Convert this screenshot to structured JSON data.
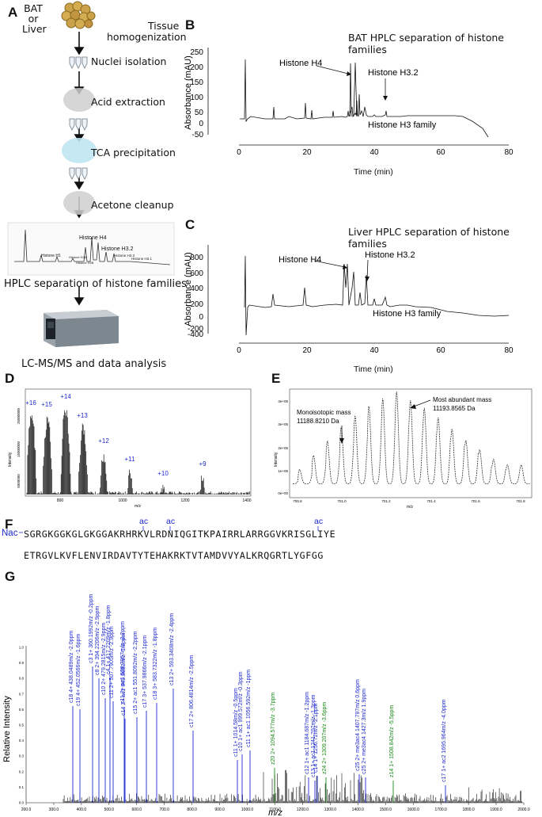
{
  "panels": {
    "A": {
      "letter": "A",
      "sample": [
        "BAT",
        "or",
        "Liver"
      ],
      "steps": [
        "Tissue",
        "homogenization",
        "Nuclei isolation",
        "Acid extraction",
        "TCA precipitation",
        "Acetone cleanup",
        "HPLC separation of histone families",
        "LC-MS/MS and data analysis"
      ],
      "thumb_labels": [
        "Histone H1",
        "Histone H2A",
        "Histone H2B",
        "Histone H4",
        "Histone H3.2",
        "Histone H3.3",
        "Histone H3.1"
      ]
    },
    "B": {
      "letter": "B",
      "title": "BAT HPLC separation of histone families",
      "ylabel": "Absorbance (mAU)",
      "xlabel": "Time (min)",
      "yticks": [
        "250",
        "200",
        "150",
        "100",
        "50",
        "0",
        "-50"
      ],
      "xticks": [
        "0",
        "20",
        "40",
        "60",
        "80"
      ],
      "annotations": [
        "Histone H4",
        "Histone H3.2",
        "Histone H3 family"
      ]
    },
    "C": {
      "letter": "C",
      "title": "Liver HPLC separation of histone families",
      "ylabel": "Absorbance (mAU)",
      "xlabel": "Time (min)",
      "yticks": [
        "800",
        "600",
        "400",
        "200",
        "0",
        "-200",
        "-400"
      ],
      "xticks": [
        "0",
        "20",
        "40",
        "60",
        "80"
      ],
      "annotations": [
        "Histone H4",
        "Histone H3.2",
        "Histone H3 family"
      ]
    },
    "D": {
      "letter": "D",
      "ylabel": "Intensity",
      "xlabel": "m/z",
      "charge_states": [
        "+16",
        "+15",
        "+14",
        "+13",
        "+12",
        "+11",
        "+10",
        "+9"
      ],
      "yticks": [
        "25000000",
        "15000000",
        "5000000"
      ],
      "xticks": [
        "800",
        "1000",
        "1200",
        "1400"
      ]
    },
    "E": {
      "letter": "E",
      "ylabel": "Intensity",
      "xlabel": "m/z",
      "mono_label": [
        "Monoisotopic mass",
        "11188.8210 Da"
      ],
      "abundant_label": [
        "Most abundant mass",
        "11193.8565 Da"
      ],
      "yticks": [
        "4e+05",
        "3e+05",
        "2e+05",
        "1e+05",
        "0e+00"
      ],
      "xticks": [
        "700.8",
        "701.0",
        "701.2",
        "701.4",
        "701.6",
        "701.8"
      ]
    },
    "F": {
      "letter": "F",
      "nterm": "Nac",
      "mod": "ac",
      "line1": "SGRGKGGKGLGKGGAKRHRKVLRDNIQGITKPAIRRLARRGGVKRISGLIYE",
      "line2": "ETRGVLKVFLENVIRDAVTYTEHAKRKTVTAMDVVYALKRQGRTLYGFGG"
    },
    "G": {
      "letter": "G",
      "ylabel": "Relative Intensity",
      "xlabel": "m/z",
      "xticks": [
        "200.0",
        "300.0",
        "400.0",
        "500.0",
        "600.0",
        "700.0",
        "800.0",
        "900.0",
        "1000.0",
        "1100.0",
        "1200.0",
        "1300.0",
        "1400.0",
        "1500.0",
        "1600.0",
        "1700.0",
        "1800.0",
        "1900.0",
        "2000.0"
      ],
      "yticks": [
        "0.0",
        "0.1",
        "0.2",
        "0.3",
        "0.4",
        "0.5",
        "0.6",
        "0.7",
        "0.8",
        "0.9",
        "1.0"
      ],
      "fragment_labels": [
        "c3 1+ 360.1992m/z -0.2ppm",
        "c4 1+ 417.2209m/z -1.8ppm",
        "c8 2+ 394.2206m/z -2.9ppm",
        "c13 2+ 593.3408m/z -2.4ppm",
        "c18 4+ 438.0489m/z -2.0ppm",
        "c19 4+ 452.0566m/z -1.6ppm",
        "c10 2+ 479.2815m/z -2.9ppm",
        "c11 2+ 507.7905m/z -2.9ppm",
        "c17 3+ 537.9866m/z -2.1ppm",
        "c11 2+ ac1 528.7957m/z -2.2ppm",
        "c15 2+ ac1 551.8092m/z -2.2ppm",
        "c18 3+ 583.7322m/z -1.8ppm",
        "c14 2+ ac1 649.8683m/z -1.8ppm",
        "c17 2+ 806.4814m/z -2.5ppm",
        "c11 1+ ac1 1056.592m/z -1ppm",
        "c10 1+ ac1 999.572m/z -0.3ppm",
        "c11 1+ 1014.58m/z -0.5ppm",
        "z20 2+ 1094.577m/z -3.7ppm",
        "c12 1+ ac1 1184.687m/z -1.2ppm",
        "c13 1+ ac1 1241.707m/z -1.3ppm",
        "c14 1+ 1256.72m/z -2.1ppm",
        "z24 2+ 1309.207m/z -3.6ppm",
        "c25 2+ me3ac4 1407.797m/z 0.6ppm",
        "c25 2+ me3ac4 1427.3m/z 1.9ppm",
        "z14 1+ 1508.842m/z -5.5ppm",
        "c17 1+ ac2 1695.964m/z -4.0ppm"
      ]
    }
  },
  "colors": {
    "blue": "#1f2ad0",
    "green": "#1a8a1a",
    "black": "#111111"
  }
}
